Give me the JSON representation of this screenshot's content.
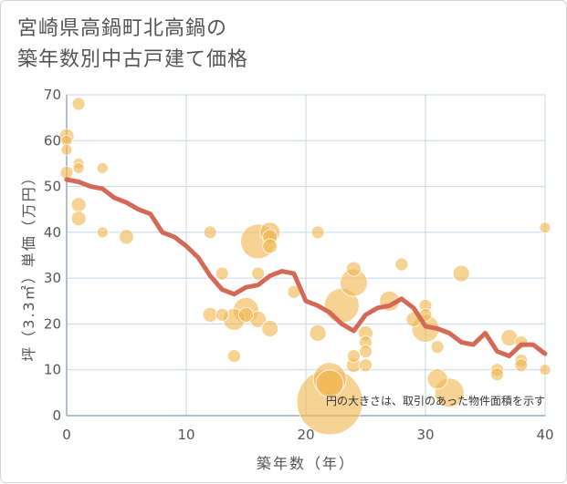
{
  "title_line1": "宮崎県高鍋町北高鍋の",
  "title_line2": "築年数別中古戸建て価格",
  "chart_data": {
    "type": "scatter",
    "xlabel": "築年数（年）",
    "ylabel": "坪（3.3㎡）単価（万円）",
    "xlim": [
      0,
      40
    ],
    "ylim": [
      0,
      70
    ],
    "x_ticks": [
      "0",
      "10",
      "20",
      "30",
      "40"
    ],
    "y_ticks": [
      "0",
      "10",
      "20",
      "30",
      "40",
      "50",
      "60",
      "70"
    ],
    "note": "円の大きさは、取引のあった物件面積を示す",
    "colors": {
      "bubble": "#f0b751",
      "line": "#d46a56",
      "grid": "#c5d5e6",
      "axis": "#9aa9bb"
    },
    "bubbles": [
      {
        "x": 0,
        "y": 61,
        "s": 8
      },
      {
        "x": 0,
        "y": 60,
        "s": 6
      },
      {
        "x": 0,
        "y": 58,
        "s": 6
      },
      {
        "x": 0,
        "y": 53,
        "s": 7
      },
      {
        "x": 1,
        "y": 68,
        "s": 7
      },
      {
        "x": 1,
        "y": 55,
        "s": 6
      },
      {
        "x": 1,
        "y": 54,
        "s": 6
      },
      {
        "x": 1,
        "y": 46,
        "s": 8
      },
      {
        "x": 1,
        "y": 43,
        "s": 8
      },
      {
        "x": 3,
        "y": 54,
        "s": 6
      },
      {
        "x": 3,
        "y": 40,
        "s": 6
      },
      {
        "x": 5,
        "y": 39,
        "s": 8
      },
      {
        "x": 12,
        "y": 40,
        "s": 7
      },
      {
        "x": 12,
        "y": 22,
        "s": 8
      },
      {
        "x": 13,
        "y": 31,
        "s": 7
      },
      {
        "x": 13,
        "y": 22,
        "s": 7
      },
      {
        "x": 14,
        "y": 21,
        "s": 12
      },
      {
        "x": 14,
        "y": 13,
        "s": 7
      },
      {
        "x": 15,
        "y": 23,
        "s": 14
      },
      {
        "x": 15,
        "y": 22,
        "s": 8
      },
      {
        "x": 16,
        "y": 38,
        "s": 19
      },
      {
        "x": 16,
        "y": 31,
        "s": 7
      },
      {
        "x": 16,
        "y": 21,
        "s": 9
      },
      {
        "x": 17,
        "y": 40,
        "s": 11
      },
      {
        "x": 17,
        "y": 39,
        "s": 8
      },
      {
        "x": 17,
        "y": 37,
        "s": 8
      },
      {
        "x": 17,
        "y": 19,
        "s": 9
      },
      {
        "x": 19,
        "y": 27,
        "s": 7
      },
      {
        "x": 21,
        "y": 40,
        "s": 7
      },
      {
        "x": 21,
        "y": 18,
        "s": 9
      },
      {
        "x": 22,
        "y": 8,
        "s": 18
      },
      {
        "x": 22,
        "y": 7,
        "s": 15
      },
      {
        "x": 22,
        "y": 3,
        "s": 36
      },
      {
        "x": 23,
        "y": 24,
        "s": 19
      },
      {
        "x": 24,
        "y": 32,
        "s": 8
      },
      {
        "x": 24,
        "y": 29,
        "s": 15
      },
      {
        "x": 24,
        "y": 13,
        "s": 7
      },
      {
        "x": 24,
        "y": 11,
        "s": 8
      },
      {
        "x": 25,
        "y": 18,
        "s": 8
      },
      {
        "x": 25,
        "y": 16,
        "s": 7
      },
      {
        "x": 25,
        "y": 14,
        "s": 7
      },
      {
        "x": 25,
        "y": 11,
        "s": 7
      },
      {
        "x": 27,
        "y": 25,
        "s": 11
      },
      {
        "x": 28,
        "y": 33,
        "s": 7
      },
      {
        "x": 29,
        "y": 21,
        "s": 8
      },
      {
        "x": 30,
        "y": 24,
        "s": 7
      },
      {
        "x": 30,
        "y": 22,
        "s": 7
      },
      {
        "x": 30,
        "y": 19,
        "s": 15
      },
      {
        "x": 31,
        "y": 15,
        "s": 7
      },
      {
        "x": 31,
        "y": 8,
        "s": 11
      },
      {
        "x": 32,
        "y": 5,
        "s": 16
      },
      {
        "x": 33,
        "y": 31,
        "s": 9
      },
      {
        "x": 36,
        "y": 10,
        "s": 7
      },
      {
        "x": 36,
        "y": 9,
        "s": 7
      },
      {
        "x": 37,
        "y": 17,
        "s": 9
      },
      {
        "x": 38,
        "y": 16,
        "s": 7
      },
      {
        "x": 38,
        "y": 12,
        "s": 7
      },
      {
        "x": 38,
        "y": 11,
        "s": 7
      },
      {
        "x": 40,
        "y": 41,
        "s": 6
      },
      {
        "x": 40,
        "y": 10,
        "s": 6
      }
    ],
    "trend": {
      "x": [
        0,
        1,
        2,
        3,
        4,
        5,
        6,
        7,
        8,
        9,
        10,
        11,
        12,
        13,
        14,
        15,
        16,
        17,
        18,
        19,
        20,
        21,
        22,
        23,
        24,
        25,
        26,
        27,
        28,
        29,
        30,
        31,
        32,
        33,
        34,
        35,
        36,
        37,
        38,
        39,
        40
      ],
      "y": [
        51.5,
        51,
        50,
        49.5,
        47.5,
        46.5,
        45,
        44,
        40,
        39,
        37,
        34.5,
        30.5,
        27.5,
        26.5,
        28,
        28.5,
        30.5,
        31.5,
        31,
        25,
        24,
        22.5,
        20,
        18.5,
        22,
        23.5,
        24,
        25.5,
        23.5,
        19.5,
        19,
        18,
        16,
        15.5,
        18,
        14,
        13,
        15.5,
        15.5,
        13.5
      ]
    }
  }
}
